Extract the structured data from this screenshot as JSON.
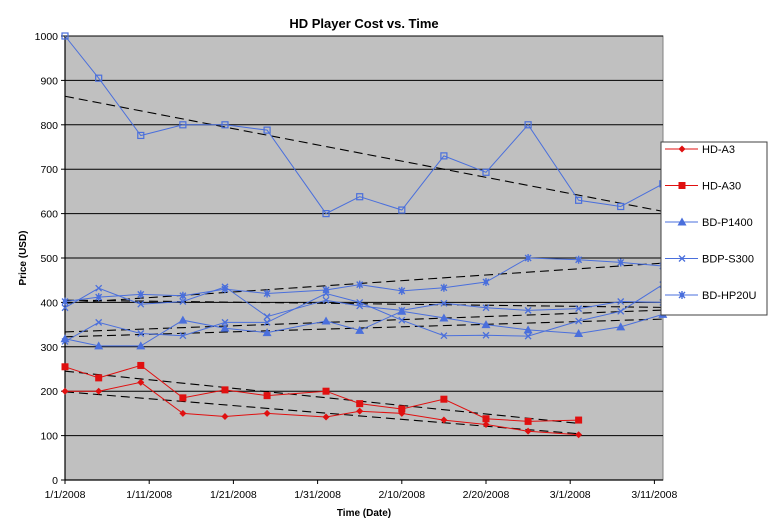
{
  "chart_data": {
    "type": "line",
    "title": "HD Player Cost vs. Time",
    "xlabel": "Time (Date)",
    "ylabel": "Price (USD)",
    "ylim": [
      0,
      1000
    ],
    "yticks": [
      0,
      100,
      200,
      300,
      400,
      500,
      600,
      700,
      800,
      900,
      1000
    ],
    "xticks": [
      "1/1/2008",
      "1/11/2008",
      "1/21/2008",
      "1/31/2008",
      "2/10/2008",
      "2/20/2008",
      "3/1/2008",
      "3/11/2008"
    ],
    "x_range_days": [
      0,
      71
    ],
    "grid": "horizontal major gridlines",
    "legend_position": "right",
    "plot_background": "#c0c0c0",
    "trendlines": "linear, black dashed, one per series",
    "series": [
      {
        "name": "HD-A3",
        "color": "#e01010",
        "marker": "diamond",
        "x_days": [
          0,
          4,
          9,
          14,
          19,
          24,
          31,
          35,
          40,
          45,
          50,
          55,
          61
        ],
        "values": [
          200,
          200,
          220,
          150,
          143,
          150,
          142,
          155,
          150,
          135,
          125,
          110,
          102
        ]
      },
      {
        "name": "HD-A30",
        "color": "#e01010",
        "marker": "square",
        "x_days": [
          0,
          4,
          9,
          14,
          19,
          24,
          31,
          35,
          40,
          45,
          50,
          55,
          61
        ],
        "values": [
          255,
          230,
          258,
          185,
          203,
          190,
          200,
          172,
          160,
          182,
          138,
          132,
          135
        ]
      },
      {
        "name": "BD-P1400",
        "color": "#4a6fdc",
        "marker": "triangle",
        "x_days": [
          0,
          4,
          9,
          14,
          19,
          24,
          31,
          35,
          40,
          45,
          50,
          55,
          61,
          66,
          71
        ],
        "values": [
          318,
          302,
          302,
          360,
          342,
          332,
          358,
          337,
          380,
          365,
          350,
          338,
          330,
          345,
          373
        ]
      },
      {
        "name": "BDP-S300",
        "color": "#4a6fdc",
        "marker": "x",
        "x_days": [
          0,
          4,
          9,
          14,
          19,
          24,
          31,
          35,
          40,
          45,
          50,
          55,
          61,
          66,
          71
        ],
        "values": [
          388,
          432,
          396,
          402,
          435,
          368,
          405,
          392,
          382,
          398,
          388,
          382,
          386,
          402,
          400
        ]
      },
      {
        "name": "BD-HP20U",
        "color": "#4a6fdc",
        "marker": "star",
        "x_days": [
          0,
          4,
          9,
          14,
          19,
          24,
          31,
          35,
          40,
          45,
          50,
          55,
          61,
          66,
          71
        ],
        "values": [
          402,
          412,
          418,
          415,
          430,
          420,
          428,
          440,
          426,
          433,
          446,
          500,
          496,
          490,
          482
        ]
      },
      {
        "name": "",
        "color": "#4a6fdc",
        "marker": "x",
        "x_days": [
          0,
          4,
          9,
          14,
          19,
          24,
          31,
          35,
          40,
          45,
          50,
          55,
          61,
          66,
          71
        ],
        "values": [
          312,
          355,
          330,
          325,
          355,
          355,
          420,
          400,
          360,
          325,
          326,
          324,
          358,
          380,
          440
        ]
      },
      {
        "name": "",
        "color": "#4a6fdc",
        "marker": "open-square",
        "x_days": [
          0,
          4,
          9,
          14,
          19,
          24,
          31,
          35,
          40,
          45,
          50,
          55,
          61,
          66,
          71
        ],
        "values": [
          1000,
          905,
          776,
          800,
          800,
          788,
          600,
          638,
          608,
          730,
          693,
          800,
          630,
          616,
          667
        ]
      }
    ]
  },
  "legend": {
    "items": [
      {
        "label": "HD-A3",
        "color": "#e01010",
        "marker": "diamond"
      },
      {
        "label": "HD-A30",
        "color": "#e01010",
        "marker": "square"
      },
      {
        "label": "BD-P1400",
        "color": "#4a6fdc",
        "marker": "triangle"
      },
      {
        "label": "BDP-S300",
        "color": "#4a6fdc",
        "marker": "x"
      },
      {
        "label": "BD-HP20U",
        "color": "#4a6fdc",
        "marker": "star"
      }
    ]
  }
}
